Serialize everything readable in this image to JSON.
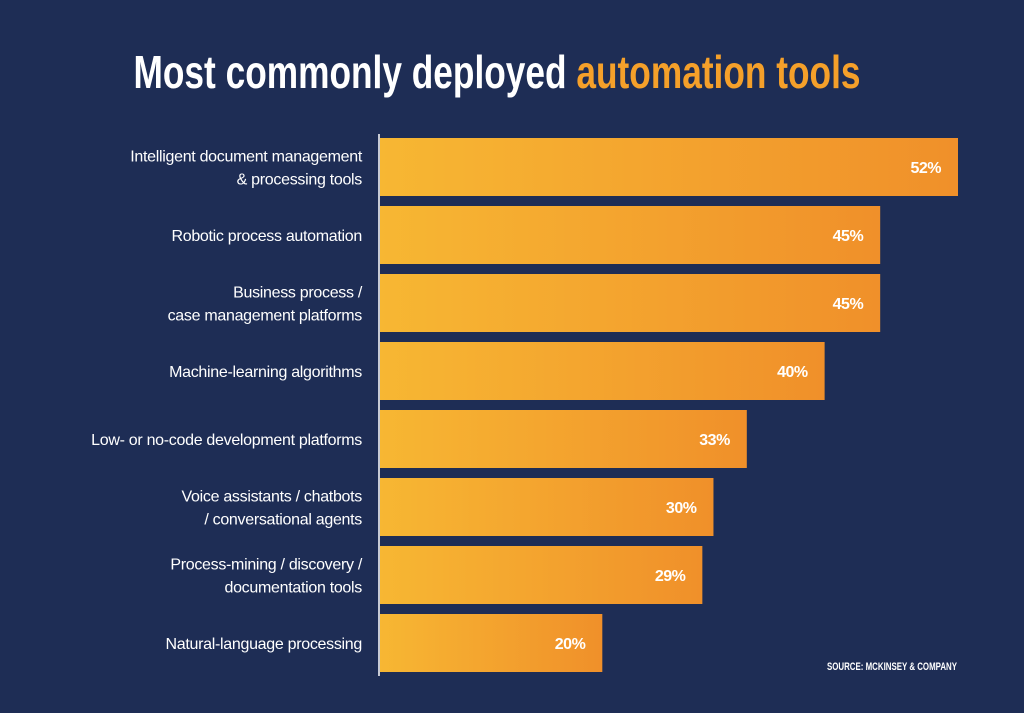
{
  "chart_data": {
    "type": "bar",
    "orientation": "horizontal",
    "title": {
      "part1": "Most commonly deployed ",
      "part2": "automation tools"
    },
    "categories": [
      [
        "Intelligent document management",
        "& processing tools"
      ],
      [
        "Robotic process automation"
      ],
      [
        "Business process /",
        "case management platforms"
      ],
      [
        "Machine-learning algorithms"
      ],
      [
        "Low- or no-code development platforms"
      ],
      [
        "Voice assistants / chatbots",
        "/ conversational agents"
      ],
      [
        "Process-mining / discovery /",
        "documentation tools"
      ],
      [
        "Natural-language processing"
      ]
    ],
    "values": [
      52,
      45,
      45,
      40,
      33,
      30,
      29,
      20
    ],
    "value_suffix": "%",
    "xlim": [
      0,
      52
    ],
    "grid": false,
    "source": "SOURCE: MCKINSEY & COMPANY",
    "colors": {
      "background": "#1e2d55",
      "bar_start": "#f7b733",
      "bar_end": "#f0902a",
      "accent": "#f5a02a",
      "text": "#ffffff"
    }
  }
}
